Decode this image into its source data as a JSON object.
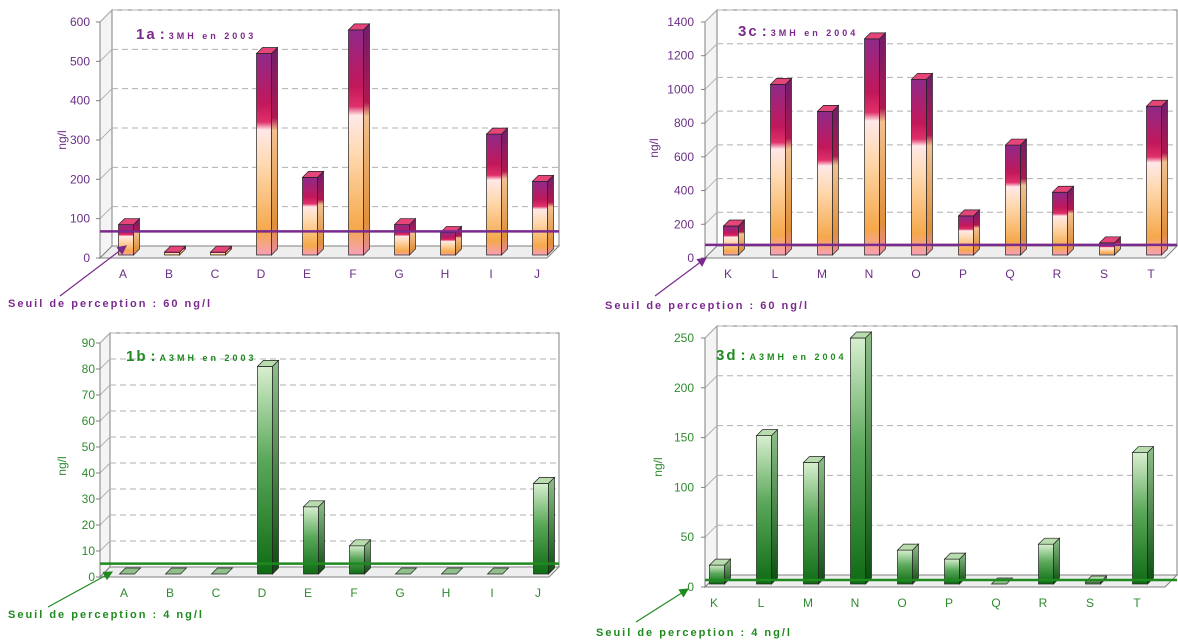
{
  "colors": {
    "purple": "#7a2a8c",
    "green": "#1f8a1f",
    "orange": "#f5a84a",
    "magenta": "#c2185b",
    "grid": "#b0b0b0"
  },
  "chart_data": [
    {
      "id": "1a",
      "type": "bar",
      "title_num": "1a",
      "title_text": "3MH en 2003",
      "ylabel": "ng/l",
      "categories": [
        "A",
        "B",
        "C",
        "D",
        "E",
        "F",
        "G",
        "H",
        "I",
        "J"
      ],
      "values": [
        85,
        15,
        15,
        520,
        205,
        580,
        85,
        65,
        315,
        195
      ],
      "ylim": [
        0,
        600
      ],
      "yticks": [
        "0",
        "100",
        "200",
        "300",
        "400",
        "500",
        "600"
      ],
      "threshold": 60,
      "threshold_label": "Seuil de perception : 60 ng/l",
      "grid": true,
      "style": "orange-magenta"
    },
    {
      "id": "3c",
      "type": "bar",
      "title_num": "3c",
      "title_text": "3MH en 2004",
      "ylabel": "ng/l",
      "categories": [
        "K",
        "L",
        "M",
        "N",
        "O",
        "P",
        "Q",
        "R",
        "S",
        "T"
      ],
      "values": [
        190,
        1030,
        870,
        1300,
        1060,
        250,
        670,
        390,
        90,
        900
      ],
      "ylim": [
        0,
        1400
      ],
      "yticks": [
        "0",
        "200",
        "400",
        "600",
        "800",
        "1000",
        "1200",
        "1400"
      ],
      "threshold": 60,
      "threshold_label": "Seuil de perception : 60 ng/l",
      "grid": true,
      "style": "orange-magenta"
    },
    {
      "id": "1b",
      "type": "bar",
      "title_num": "1b",
      "title_text": "A3MH en 2003",
      "ylabel": "ng/l",
      "categories": [
        "A",
        "B",
        "C",
        "D",
        "E",
        "F",
        "G",
        "H",
        "I",
        "J"
      ],
      "values": [
        0,
        0,
        0,
        81,
        27,
        12,
        0,
        0,
        0,
        36
      ],
      "ylim": [
        0,
        90
      ],
      "yticks": [
        "0",
        "10",
        "20",
        "30",
        "40",
        "50",
        "60",
        "70",
        "80",
        "90"
      ],
      "threshold": 4,
      "threshold_label": "Seuil de perception : 4 ng/l",
      "grid": true,
      "style": "green"
    },
    {
      "id": "3d",
      "type": "bar",
      "title_num": "3d",
      "title_text": "A3MH en 2004",
      "ylabel": "ng/l",
      "categories": [
        "K",
        "L",
        "M",
        "N",
        "O",
        "P",
        "Q",
        "R",
        "S",
        "T"
      ],
      "values": [
        22,
        152,
        125,
        250,
        37,
        28,
        0,
        43,
        5,
        135
      ],
      "ylim": [
        0,
        250
      ],
      "yticks": [
        "0",
        "50",
        "100",
        "150",
        "200",
        "250"
      ],
      "threshold": 4,
      "threshold_label": "Seuil de perception : 4 ng/l",
      "grid": true,
      "style": "green"
    }
  ]
}
